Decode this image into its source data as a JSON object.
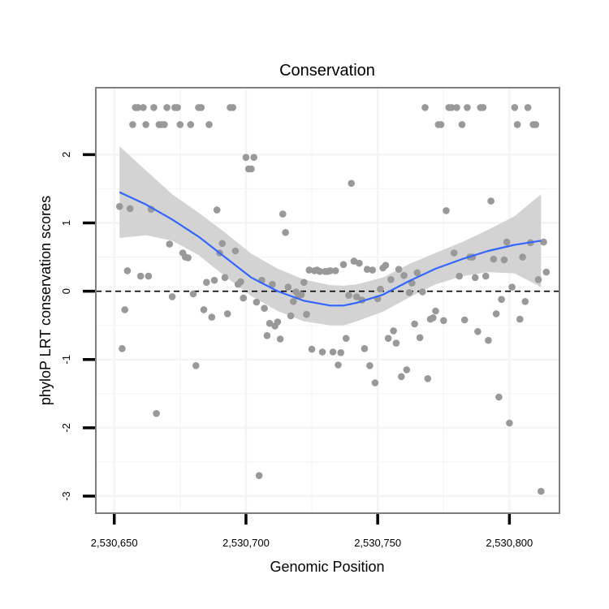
{
  "chart_data": {
    "type": "scatter",
    "title": "Conservation",
    "xlabel": "Genomic Position",
    "ylabel": "phyloP LRT conservation scores",
    "xlim": [
      2530643,
      2530819
    ],
    "ylim": [
      -3.25,
      2.98
    ],
    "x_ticks": [
      2530650,
      2530700,
      2530750,
      2530800
    ],
    "x_tick_labels": [
      "2,530,650",
      "2,530,700",
      "2,530,750",
      "2,530,800"
    ],
    "y_ticks": [
      -3,
      -2,
      -1,
      0,
      1,
      2
    ],
    "y_tick_labels": [
      "-3",
      "-2",
      "-1",
      "0",
      "1",
      "2"
    ],
    "reference_line": 0,
    "colors": {
      "points": "#999999",
      "smooth": "#3366ff",
      "ribbon": "#d3d3d3",
      "panel_border": "#7f7f7f",
      "grid": "#f4f4f4"
    },
    "points": [
      [
        2530652,
        1.24
      ],
      [
        2530653,
        -0.84
      ],
      [
        2530654,
        -0.27
      ],
      [
        2530655,
        0.3
      ],
      [
        2530656,
        1.21
      ],
      [
        2530657,
        2.44
      ],
      [
        2530658,
        2.69
      ],
      [
        2530659,
        2.69
      ],
      [
        2530660,
        0.22
      ],
      [
        2530661,
        2.69
      ],
      [
        2530662,
        2.44
      ],
      [
        2530663,
        0.22
      ],
      [
        2530664,
        1.2
      ],
      [
        2530665,
        2.69
      ],
      [
        2530666,
        -1.79
      ],
      [
        2530667,
        2.44
      ],
      [
        2530668,
        2.44
      ],
      [
        2530669,
        2.44
      ],
      [
        2530670,
        2.69
      ],
      [
        2530671,
        0.69
      ],
      [
        2530672,
        -0.08
      ],
      [
        2530673,
        2.69
      ],
      [
        2530674,
        2.69
      ],
      [
        2530675,
        2.44
      ],
      [
        2530676,
        0.56
      ],
      [
        2530677,
        0.5
      ],
      [
        2530678,
        0.49
      ],
      [
        2530679,
        2.44
      ],
      [
        2530680,
        -0.04
      ],
      [
        2530681,
        -1.09
      ],
      [
        2530682,
        2.69
      ],
      [
        2530683,
        2.69
      ],
      [
        2530684,
        -0.27
      ],
      [
        2530685,
        0.13
      ],
      [
        2530686,
        2.44
      ],
      [
        2530687,
        -0.38
      ],
      [
        2530688,
        0.16
      ],
      [
        2530689,
        1.19
      ],
      [
        2530690,
        0.56
      ],
      [
        2530691,
        0.7
      ],
      [
        2530692,
        0.2
      ],
      [
        2530693,
        -0.33
      ],
      [
        2530694,
        2.69
      ],
      [
        2530695,
        2.69
      ],
      [
        2530696,
        0.59
      ],
      [
        2530697,
        0.1
      ],
      [
        2530698,
        0.14
      ],
      [
        2530699,
        -0.1
      ],
      [
        2530700,
        1.96
      ],
      [
        2530701,
        1.79
      ],
      [
        2530702,
        1.79
      ],
      [
        2530703,
        1.96
      ],
      [
        2530704,
        -0.16
      ],
      [
        2530705,
        -2.7
      ],
      [
        2530706,
        0.16
      ],
      [
        2530707,
        -0.25
      ],
      [
        2530708,
        -0.65
      ],
      [
        2530709,
        -0.47
      ],
      [
        2530710,
        0.1
      ],
      [
        2530711,
        -0.51
      ],
      [
        2530712,
        -0.45
      ],
      [
        2530713,
        -0.7
      ],
      [
        2530714,
        1.13
      ],
      [
        2530715,
        0.86
      ],
      [
        2530716,
        0.06
      ],
      [
        2530717,
        -0.36
      ],
      [
        2530718,
        -0.15
      ],
      [
        2530719,
        -0.01
      ],
      [
        2530720,
        -0.07
      ],
      [
        2530721,
        -0.05
      ],
      [
        2530722,
        0.13
      ],
      [
        2530723,
        -0.34
      ],
      [
        2530724,
        0.31
      ],
      [
        2530725,
        -0.85
      ],
      [
        2530726,
        0.3
      ],
      [
        2530727,
        0.31
      ],
      [
        2530728,
        0.29
      ],
      [
        2530729,
        -0.89
      ],
      [
        2530730,
        0.29
      ],
      [
        2530731,
        0.29
      ],
      [
        2530732,
        0.3
      ],
      [
        2530733,
        -0.89
      ],
      [
        2530734,
        0.3
      ],
      [
        2530735,
        -1.08
      ],
      [
        2530736,
        -0.9
      ],
      [
        2530737,
        0.39
      ],
      [
        2530738,
        -0.69
      ],
      [
        2530739,
        -0.06
      ],
      [
        2530740,
        1.58
      ],
      [
        2530741,
        0.44
      ],
      [
        2530742,
        -0.08
      ],
      [
        2530743,
        0.41
      ],
      [
        2530744,
        -0.13
      ],
      [
        2530745,
        -0.84
      ],
      [
        2530746,
        0.32
      ],
      [
        2530747,
        -1.09
      ],
      [
        2530748,
        0.31
      ],
      [
        2530749,
        -1.34
      ],
      [
        2530750,
        -0.11
      ],
      [
        2530751,
        0.03
      ],
      [
        2530752,
        0.34
      ],
      [
        2530753,
        0.38
      ],
      [
        2530754,
        -0.69
      ],
      [
        2530755,
        0.17
      ],
      [
        2530756,
        -0.58
      ],
      [
        2530757,
        -0.76
      ],
      [
        2530758,
        0.32
      ],
      [
        2530759,
        -1.25
      ],
      [
        2530760,
        0.23
      ],
      [
        2530761,
        -1.15
      ],
      [
        2530762,
        -0.02
      ],
      [
        2530763,
        0.12
      ],
      [
        2530764,
        -0.48
      ],
      [
        2530765,
        0.27
      ],
      [
        2530766,
        -0.68
      ],
      [
        2530767,
        -0.01
      ],
      [
        2530768,
        2.69
      ],
      [
        2530769,
        -1.28
      ],
      [
        2530770,
        -0.41
      ],
      [
        2530771,
        -0.39
      ],
      [
        2530772,
        -0.29
      ],
      [
        2530773,
        2.44
      ],
      [
        2530774,
        2.44
      ],
      [
        2530775,
        -0.43
      ],
      [
        2530776,
        1.18
      ],
      [
        2530777,
        2.69
      ],
      [
        2530778,
        2.69
      ],
      [
        2530779,
        0.56
      ],
      [
        2530780,
        2.69
      ],
      [
        2530781,
        0.22
      ],
      [
        2530782,
        2.44
      ],
      [
        2530783,
        -0.42
      ],
      [
        2530784,
        2.69
      ],
      [
        2530785,
        0.5
      ],
      [
        2530786,
        0.5
      ],
      [
        2530787,
        0.2
      ],
      [
        2530788,
        -0.59
      ],
      [
        2530789,
        2.69
      ],
      [
        2530790,
        2.69
      ],
      [
        2530791,
        0.22
      ],
      [
        2530792,
        -0.72
      ],
      [
        2530793,
        1.32
      ],
      [
        2530794,
        0.47
      ],
      [
        2530795,
        -0.33
      ],
      [
        2530796,
        -1.55
      ],
      [
        2530797,
        -0.12
      ],
      [
        2530798,
        0.46
      ],
      [
        2530799,
        0.72
      ],
      [
        2530800,
        -1.93
      ],
      [
        2530801,
        0.06
      ],
      [
        2530802,
        2.69
      ],
      [
        2530803,
        2.44
      ],
      [
        2530804,
        -0.41
      ],
      [
        2530805,
        0.5
      ],
      [
        2530806,
        -0.15
      ],
      [
        2530807,
        2.69
      ],
      [
        2530808,
        0.71
      ],
      [
        2530809,
        2.44
      ],
      [
        2530810,
        2.44
      ],
      [
        2530811,
        0.17
      ],
      [
        2530812,
        -2.93
      ],
      [
        2530813,
        0.72
      ],
      [
        2530814,
        0.28
      ]
    ],
    "smooth_line": {
      "x": [
        2530652,
        2530662,
        2530672,
        2530682,
        2530692,
        2530702,
        2530712,
        2530722,
        2530732,
        2530737,
        2530742,
        2530752,
        2530762,
        2530772,
        2530782,
        2530792,
        2530802,
        2530812
      ],
      "y": [
        1.45,
        1.27,
        1.05,
        0.8,
        0.5,
        0.2,
        0.0,
        -0.14,
        -0.21,
        -0.21,
        -0.17,
        -0.05,
        0.15,
        0.33,
        0.47,
        0.59,
        0.68,
        0.74
      ]
    },
    "confidence_band": {
      "x": [
        2530652,
        2530662,
        2530672,
        2530682,
        2530692,
        2530702,
        2530712,
        2530722,
        2530732,
        2530737,
        2530742,
        2530752,
        2530762,
        2530772,
        2530782,
        2530792,
        2530802,
        2530812
      ],
      "upper": [
        2.12,
        1.77,
        1.42,
        1.15,
        0.86,
        0.55,
        0.33,
        0.17,
        0.09,
        0.08,
        0.1,
        0.2,
        0.4,
        0.56,
        0.72,
        0.9,
        1.1,
        1.42
      ],
      "lower": [
        0.78,
        0.82,
        0.74,
        0.53,
        0.22,
        -0.07,
        -0.29,
        -0.44,
        -0.5,
        -0.5,
        -0.44,
        -0.3,
        -0.09,
        0.1,
        0.22,
        0.28,
        0.26,
        0.06
      ]
    }
  }
}
